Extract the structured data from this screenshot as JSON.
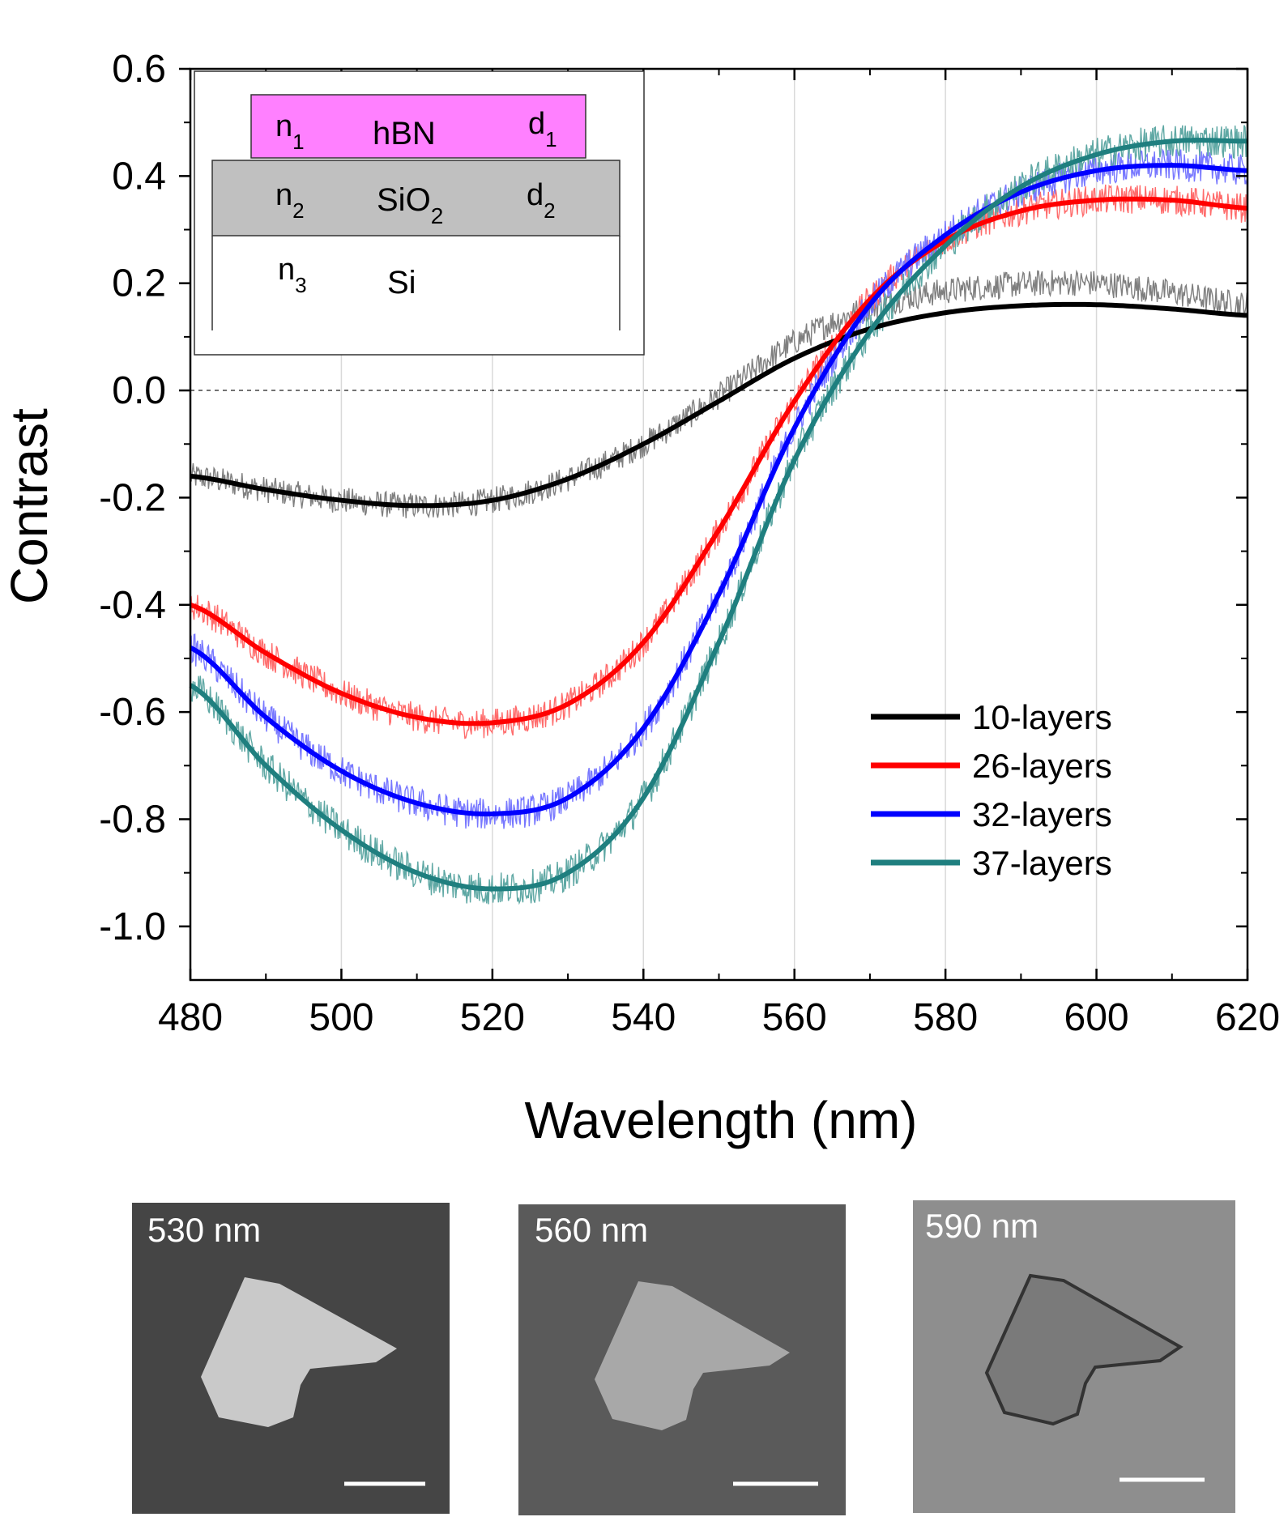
{
  "chart_data": {
    "type": "line",
    "xlabel": "Wavelength (nm)",
    "ylabel": "Contrast",
    "xlim": [
      480,
      620
    ],
    "ylim": [
      -1.1,
      0.6
    ],
    "x_ticks": [
      480,
      500,
      520,
      540,
      560,
      580,
      600,
      620
    ],
    "x_tick_labels": [
      "480",
      "500",
      "520",
      "540",
      "560",
      "580",
      "600",
      "620"
    ],
    "y_ticks": [
      -1.0,
      -0.8,
      -0.6,
      -0.4,
      -0.2,
      0.0,
      0.2,
      0.4,
      0.6
    ],
    "y_tick_labels": [
      "-1.0",
      "-0.8",
      "-0.6",
      "-0.4",
      "-0.2",
      "0.0",
      "0.2",
      "0.4",
      "0.6"
    ],
    "vertical_gridlines": [
      500,
      520,
      540,
      560,
      580,
      600
    ],
    "zero_line": 0.0,
    "legend_position": "right-middle",
    "series": [
      {
        "name": "10-layers",
        "color": "#000000",
        "noisy_color": "#7f7f7f",
        "x": [
          480,
          490,
          500,
          510,
          520,
          530,
          540,
          550,
          560,
          570,
          580,
          590,
          600,
          610,
          620
        ],
        "y": [
          -0.16,
          -0.185,
          -0.205,
          -0.215,
          -0.205,
          -0.165,
          -0.1,
          -0.02,
          0.06,
          0.115,
          0.145,
          0.158,
          0.16,
          0.152,
          0.14
        ],
        "measured_noise": 0.025,
        "measured_offset": [
          0,
          0,
          0,
          0,
          0,
          0,
          0,
          0.01,
          0.03,
          0.04,
          0.04,
          0.04,
          0.04,
          0.03,
          0.02
        ]
      },
      {
        "name": "26-layers",
        "color": "#ff0000",
        "noisy_color": "#ff6b6b",
        "x": [
          480,
          490,
          500,
          510,
          520,
          530,
          540,
          550,
          560,
          570,
          580,
          590,
          600,
          610,
          620
        ],
        "y": [
          -0.4,
          -0.49,
          -0.565,
          -0.61,
          -0.62,
          -0.585,
          -0.47,
          -0.26,
          -0.02,
          0.17,
          0.28,
          0.335,
          0.355,
          0.355,
          0.34
        ],
        "measured_noise": 0.028
      },
      {
        "name": "32-layers",
        "color": "#0000ff",
        "noisy_color": "#7777ff",
        "x": [
          480,
          490,
          500,
          510,
          520,
          530,
          540,
          550,
          560,
          570,
          580,
          590,
          600,
          610,
          620
        ],
        "y": [
          -0.48,
          -0.61,
          -0.71,
          -0.77,
          -0.79,
          -0.76,
          -0.63,
          -0.38,
          -0.07,
          0.16,
          0.29,
          0.37,
          0.41,
          0.42,
          0.41
        ],
        "measured_noise": 0.03
      },
      {
        "name": "37-layers",
        "color": "#1f7f7f",
        "noisy_color": "#5fa8a4",
        "x": [
          480,
          490,
          500,
          510,
          520,
          530,
          540,
          550,
          560,
          570,
          580,
          590,
          600,
          610,
          620
        ],
        "y": [
          -0.55,
          -0.7,
          -0.82,
          -0.9,
          -0.93,
          -0.9,
          -0.76,
          -0.47,
          -0.13,
          0.11,
          0.27,
          0.38,
          0.44,
          0.465,
          0.465
        ],
        "measured_noise": 0.032
      }
    ]
  },
  "inset": {
    "layer1": {
      "n": "n",
      "n_sub": "1",
      "material": "hBN",
      "d": "d",
      "d_sub": "1",
      "color": "#ff80ff"
    },
    "layer2": {
      "n": "n",
      "n_sub": "2",
      "material_main": "SiO",
      "material_sub": "2",
      "d": "d",
      "d_sub": "2",
      "color": "#c0c0c0"
    },
    "layer3": {
      "n": "n",
      "n_sub": "3",
      "material": "Si"
    }
  },
  "micrographs": [
    {
      "label": "530 nm",
      "background": "#454545",
      "flake_fill": "#c9c9c9",
      "flake_stroke": "#dcdcdc"
    },
    {
      "label": "560 nm",
      "background": "#5a5a5a",
      "flake_fill": "#a8a8a8",
      "flake_stroke": "#b8b8b8"
    },
    {
      "label": "590 nm",
      "background": "#8e8e8e",
      "flake_fill": "#7a7a7a",
      "flake_stroke": "#333333"
    }
  ]
}
